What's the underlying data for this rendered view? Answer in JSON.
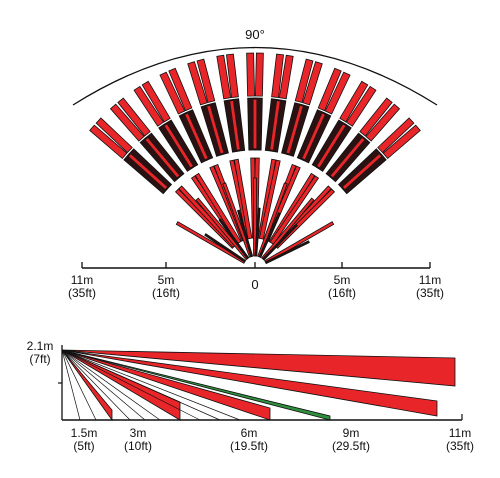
{
  "top_view": {
    "angle_label": "90°",
    "origin_label": "0",
    "ticks": [
      {
        "distance": "11m",
        "imperial": "(35ft)"
      },
      {
        "distance": "5m",
        "imperial": "(16ft)"
      },
      {
        "distance": "5m",
        "imperial": "(16ft)"
      },
      {
        "distance": "11m",
        "imperial": "(35ft)"
      }
    ]
  },
  "side_view": {
    "height_label": "2.1m",
    "height_imperial": "(7ft)",
    "ticks": [
      {
        "distance": "1.5m",
        "imperial": "(5ft)"
      },
      {
        "distance": "3m",
        "imperial": "(10ft)"
      },
      {
        "distance": "6m",
        "imperial": "(19.5ft)"
      },
      {
        "distance": "9m",
        "imperial": "(29.5ft)"
      },
      {
        "distance": "11m",
        "imperial": "(35ft)"
      }
    ]
  },
  "colors": {
    "zone_red": "#e8262a",
    "zone_dark": "#2a1212",
    "line": "#111111",
    "accent_green": "#2f8f3f"
  }
}
